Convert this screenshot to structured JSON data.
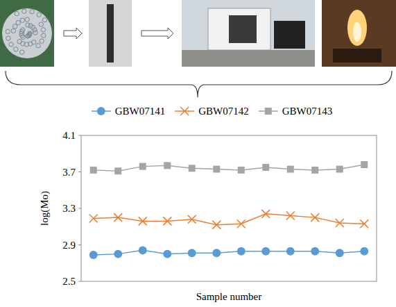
{
  "chart_data": {
    "type": "line",
    "y_label": "log(Mo)",
    "x_label": "Sample number",
    "categories": [
      null,
      null,
      null,
      null,
      null,
      null,
      null,
      null,
      null,
      null,
      null,
      null
    ],
    "series": [
      {
        "name": "GBW07141",
        "color": "#5b9bd5",
        "marker": "circle",
        "values": [
          2.79,
          2.8,
          2.84,
          2.8,
          2.81,
          2.81,
          2.83,
          2.83,
          2.83,
          2.83,
          2.81,
          2.83
        ]
      },
      {
        "name": "GBW07142",
        "color": "#ed7d31",
        "marker": "x",
        "values": [
          3.19,
          3.2,
          3.16,
          3.16,
          3.18,
          3.12,
          3.13,
          3.24,
          3.22,
          3.2,
          3.14,
          3.13
        ]
      },
      {
        "name": "GBW07143",
        "color": "#a5a5a5",
        "marker": "square",
        "values": [
          3.72,
          3.71,
          3.76,
          3.77,
          3.74,
          3.73,
          3.72,
          3.75,
          3.73,
          3.72,
          3.73,
          3.78
        ]
      }
    ],
    "ylim": [
      2.5,
      4.1
    ],
    "yticks": [
      2.5,
      2.9,
      3.3,
      3.7,
      4.1
    ],
    "legend": "top",
    "grid": false,
    "tick_labels": "y"
  }
}
